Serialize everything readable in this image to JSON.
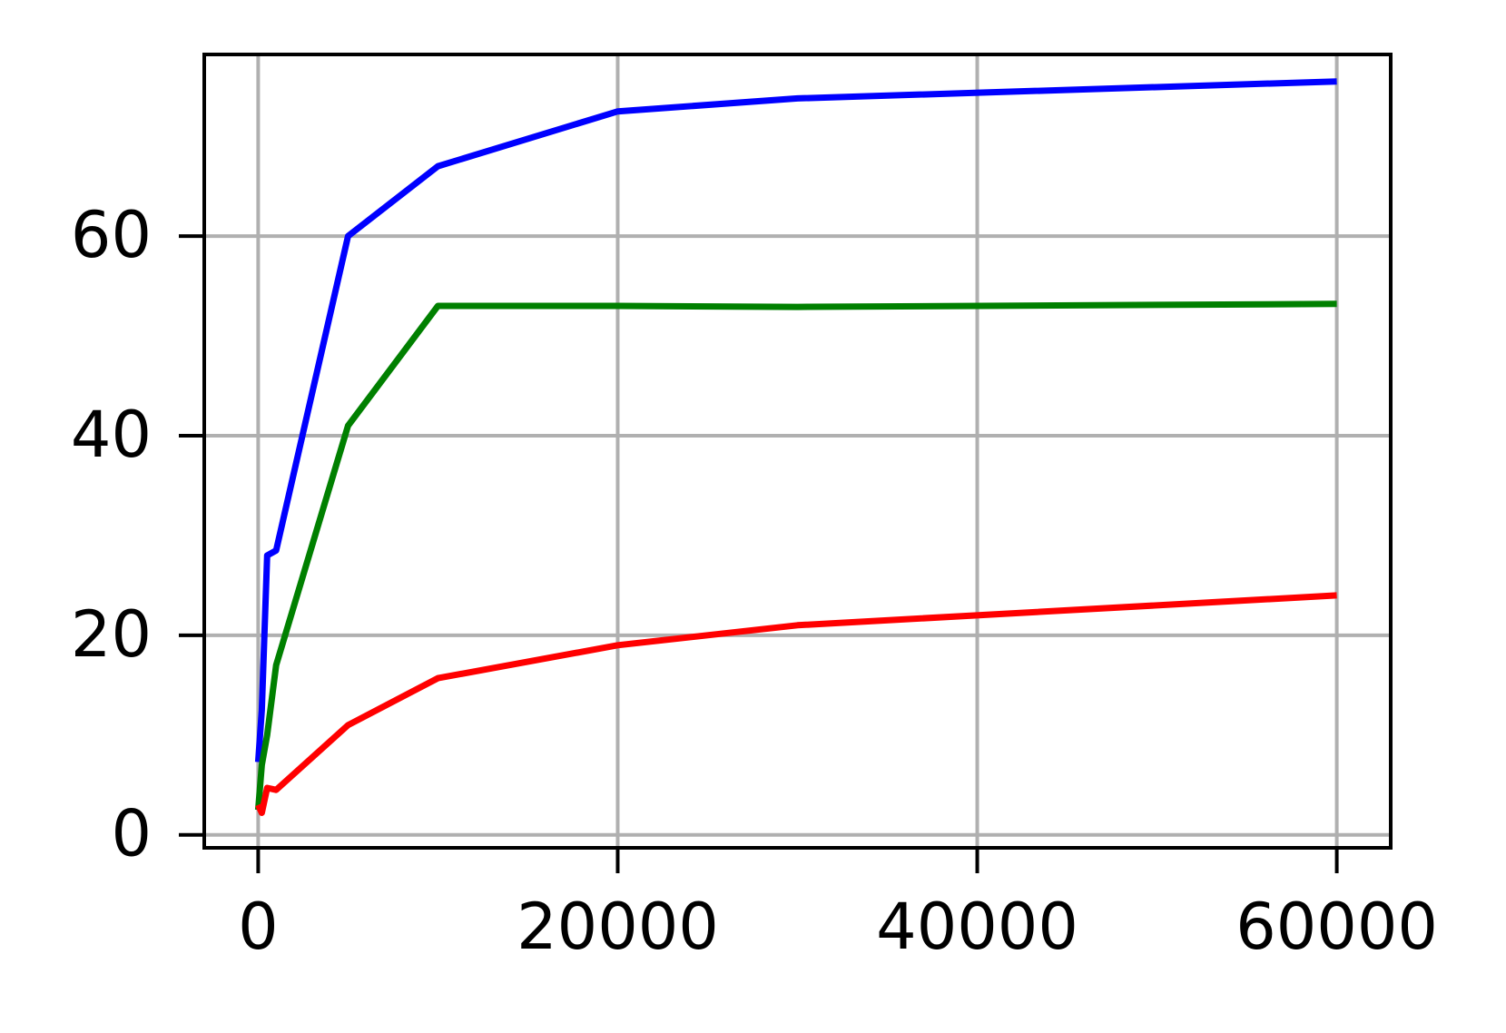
{
  "chart_data": {
    "type": "line",
    "x": [
      0,
      200,
      500,
      1000,
      5000,
      10000,
      20000,
      30000,
      60000
    ],
    "series": [
      {
        "color": "#0000ff",
        "values": [
          7.3,
          12.5,
          28,
          28.5,
          60,
          67,
          72.5,
          73.8,
          75.5
        ]
      },
      {
        "color": "#008000",
        "values": [
          2.5,
          7,
          10,
          17,
          41,
          53,
          53,
          52.9,
          53.2
        ]
      },
      {
        "color": "#ff0000",
        "values": [
          3,
          2.2,
          4.7,
          4.5,
          11,
          15.7,
          19,
          21,
          24
        ]
      }
    ],
    "xlim": [
      -3000,
      63000
    ],
    "ylim": [
      -1.3,
      78.2
    ],
    "xticks": [
      0,
      20000,
      40000,
      60000
    ],
    "yticks": [
      0,
      20,
      40,
      60
    ],
    "grid": true
  }
}
